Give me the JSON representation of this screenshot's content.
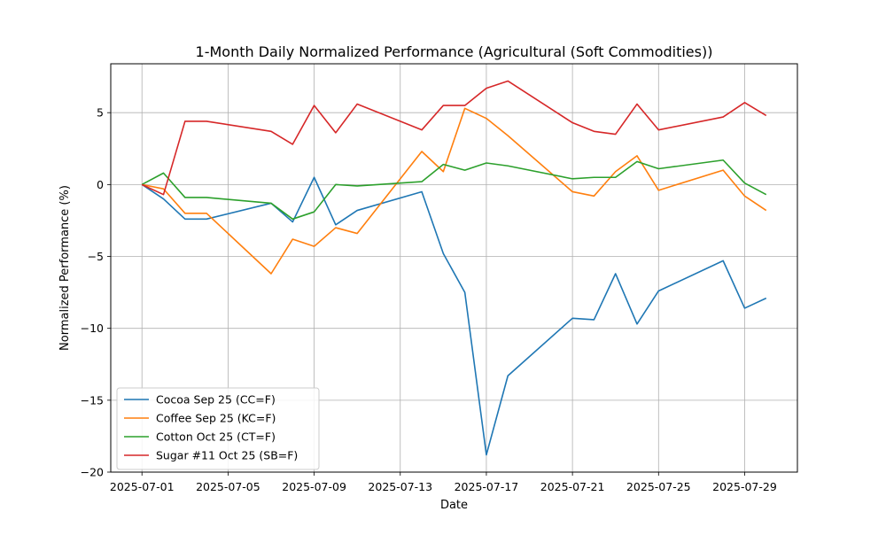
{
  "chart_data": {
    "type": "line",
    "title": "1-Month Daily Normalized Performance (Agricultural (Soft Commodities))",
    "xlabel": "Date",
    "ylabel": "Normalized Performance (%)",
    "grid": true,
    "legend_position": "lower-left",
    "x_ticks": [
      "2025-07-01",
      "2025-07-05",
      "2025-07-09",
      "2025-07-13",
      "2025-07-17",
      "2025-07-21",
      "2025-07-25",
      "2025-07-29"
    ],
    "x_tick_days": [
      1,
      5,
      9,
      13,
      17,
      21,
      25,
      29
    ],
    "y_ticks": [
      5,
      0,
      -5,
      -10,
      -15,
      -20
    ],
    "y_tick_labels": [
      "5",
      "0",
      "−5",
      "−10",
      "−15",
      "−20"
    ],
    "xlim": [
      -0.45,
      31.45
    ],
    "ylim": [
      -20,
      8.4
    ],
    "x_days": [
      1,
      2,
      3,
      4,
      7,
      8,
      9,
      10,
      11,
      14,
      15,
      16,
      17,
      18,
      21,
      22,
      23,
      24,
      25,
      28,
      29,
      30
    ],
    "series": [
      {
        "name": "Cocoa Sep 25 (CC=F)",
        "color": "#1f77b4",
        "values": [
          0,
          -1.0,
          -2.4,
          -2.4,
          -1.3,
          -2.6,
          0.5,
          -2.8,
          -1.8,
          -0.5,
          -4.8,
          -7.5,
          -18.8,
          -13.3,
          -9.3,
          -9.4,
          -6.2,
          -9.7,
          -7.4,
          -5.3,
          -8.6,
          -7.9
        ]
      },
      {
        "name": "Coffee Sep 25 (KC=F)",
        "color": "#ff7f0e",
        "values": [
          0,
          -0.3,
          -2.0,
          -2.0,
          -6.2,
          -3.8,
          -4.3,
          -3.0,
          -3.4,
          2.3,
          0.9,
          5.3,
          4.6,
          3.4,
          -0.5,
          -0.8,
          0.9,
          2.0,
          -0.4,
          1.0,
          -0.8,
          -1.8
        ]
      },
      {
        "name": "Cotton Oct 25 (CT=F)",
        "color": "#2ca02c",
        "values": [
          0,
          0.8,
          -0.9,
          -0.9,
          -1.3,
          -2.4,
          -1.9,
          0.0,
          -0.1,
          0.2,
          1.4,
          1.0,
          1.5,
          1.3,
          0.4,
          0.5,
          0.5,
          1.6,
          1.1,
          1.7,
          0.1,
          -0.7
        ]
      },
      {
        "name": "Sugar #11 Oct 25 (SB=F)",
        "color": "#d62728",
        "values": [
          0,
          -0.7,
          4.4,
          4.4,
          3.7,
          2.8,
          5.5,
          3.6,
          5.6,
          3.8,
          5.5,
          5.5,
          6.7,
          7.2,
          4.3,
          3.7,
          3.5,
          5.6,
          3.8,
          4.7,
          5.7,
          4.8
        ]
      }
    ]
  }
}
